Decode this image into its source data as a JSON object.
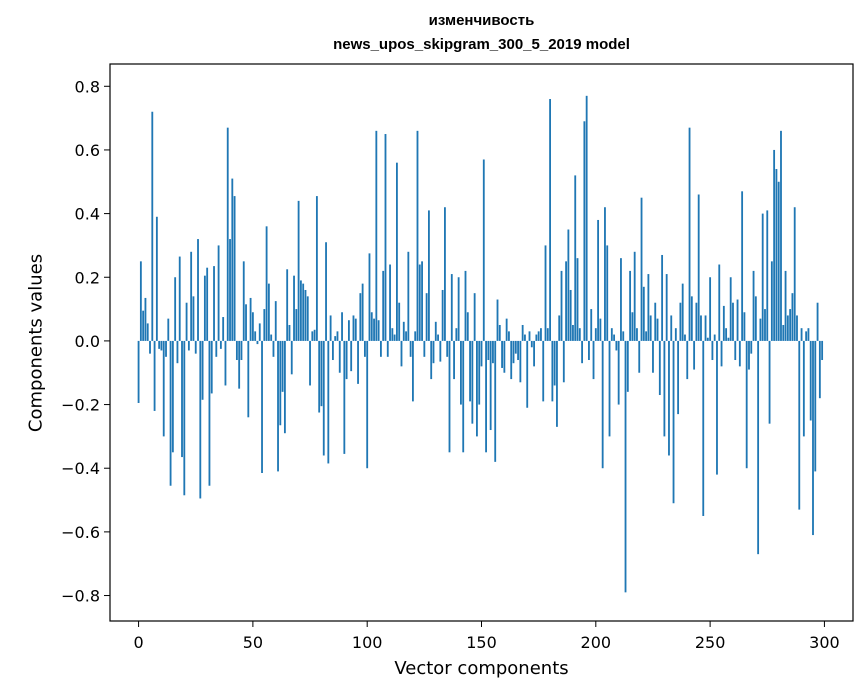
{
  "chart_data": {
    "type": "bar",
    "title": [
      "изменчивость",
      "news_upos_skipgram_300_5_2019 model"
    ],
    "xlabel": "Vector components",
    "ylabel": "Components values",
    "xlim": [
      -12.5,
      312.5
    ],
    "ylim": [
      -0.88,
      0.87
    ],
    "xticks": [
      0,
      50,
      100,
      150,
      200,
      250,
      300
    ],
    "yticks": [
      -0.8,
      -0.6,
      -0.4,
      -0.2,
      0.0,
      0.2,
      0.4,
      0.6,
      0.8
    ],
    "ytick_labels": [
      "−0.8",
      "−0.6",
      "−0.4",
      "−0.2",
      "0.0",
      "0.2",
      "0.4",
      "0.6",
      "0.8"
    ],
    "bar_color": "#1f77b4",
    "grid": false,
    "x": [
      0,
      1,
      2,
      3,
      4,
      5,
      6,
      7,
      8,
      9,
      10,
      11,
      12,
      13,
      14,
      15,
      16,
      17,
      18,
      19,
      20,
      21,
      22,
      23,
      24,
      25,
      26,
      27,
      28,
      29,
      30,
      31,
      32,
      33,
      34,
      35,
      36,
      37,
      38,
      39,
      40,
      41,
      42,
      43,
      44,
      45,
      46,
      47,
      48,
      49,
      50,
      51,
      52,
      53,
      54,
      55,
      56,
      57,
      58,
      59,
      60,
      61,
      62,
      63,
      64,
      65,
      66,
      67,
      68,
      69,
      70,
      71,
      72,
      73,
      74,
      75,
      76,
      77,
      78,
      79,
      80,
      81,
      82,
      83,
      84,
      85,
      86,
      87,
      88,
      89,
      90,
      91,
      92,
      93,
      94,
      95,
      96,
      97,
      98,
      99,
      100,
      101,
      102,
      103,
      104,
      105,
      106,
      107,
      108,
      109,
      110,
      111,
      112,
      113,
      114,
      115,
      116,
      117,
      118,
      119,
      120,
      121,
      122,
      123,
      124,
      125,
      126,
      127,
      128,
      129,
      130,
      131,
      132,
      133,
      134,
      135,
      136,
      137,
      138,
      139,
      140,
      141,
      142,
      143,
      144,
      145,
      146,
      147,
      148,
      149,
      150,
      151,
      152,
      153,
      154,
      155,
      156,
      157,
      158,
      159,
      160,
      161,
      162,
      163,
      164,
      165,
      166,
      167,
      168,
      169,
      170,
      171,
      172,
      173,
      174,
      175,
      176,
      177,
      178,
      179,
      180,
      181,
      182,
      183,
      184,
      185,
      186,
      187,
      188,
      189,
      190,
      191,
      192,
      193,
      194,
      195,
      196,
      197,
      198,
      199,
      200,
      201,
      202,
      203,
      204,
      205,
      206,
      207,
      208,
      209,
      210,
      211,
      212,
      213,
      214,
      215,
      216,
      217,
      218,
      219,
      220,
      221,
      222,
      223,
      224,
      225,
      226,
      227,
      228,
      229,
      230,
      231,
      232,
      233,
      234,
      235,
      236,
      237,
      238,
      239,
      240,
      241,
      242,
      243,
      244,
      245,
      246,
      247,
      248,
      249,
      250,
      251,
      252,
      253,
      254,
      255,
      256,
      257,
      258,
      259,
      260,
      261,
      262,
      263,
      264,
      265,
      266,
      267,
      268,
      269,
      270,
      271,
      272,
      273,
      274,
      275,
      276,
      277,
      278,
      279,
      280,
      281,
      282,
      283,
      284,
      285,
      286,
      287,
      288,
      289,
      290,
      291,
      292,
      293,
      294,
      295,
      296,
      297,
      298,
      299
    ],
    "values": [
      -0.195,
      0.25,
      0.095,
      0.135,
      0.055,
      -0.04,
      0.72,
      -0.22,
      0.39,
      -0.025,
      -0.03,
      -0.3,
      -0.05,
      0.07,
      -0.455,
      -0.35,
      0.2,
      -0.07,
      0.265,
      -0.365,
      -0.485,
      0.12,
      -0.03,
      0.28,
      0.14,
      -0.04,
      0.32,
      -0.495,
      -0.185,
      0.205,
      0.23,
      -0.455,
      -0.165,
      0.235,
      -0.05,
      0.3,
      -0.025,
      0.075,
      -0.14,
      0.67,
      0.32,
      0.51,
      0.455,
      -0.06,
      -0.15,
      -0.06,
      0.25,
      0.115,
      -0.24,
      0.135,
      0.09,
      0.03,
      -0.01,
      0.055,
      -0.415,
      0.1,
      0.36,
      0.18,
      0.02,
      -0.05,
      0.125,
      -0.41,
      -0.265,
      -0.16,
      -0.29,
      0.225,
      0.05,
      -0.105,
      0.205,
      0.1,
      0.44,
      0.19,
      0.18,
      0.16,
      0.14,
      -0.14,
      0.03,
      0.035,
      0.455,
      -0.225,
      -0.205,
      -0.36,
      0.31,
      -0.385,
      0.08,
      -0.06,
      0.015,
      0.03,
      -0.1,
      0.09,
      -0.355,
      -0.12,
      0.065,
      -0.095,
      0.08,
      0.07,
      -0.135,
      0.15,
      0.18,
      -0.05,
      -0.4,
      0.275,
      0.09,
      0.07,
      0.66,
      0.065,
      -0.05,
      0.22,
      0.65,
      -0.05,
      0.24,
      0.04,
      0.02,
      0.56,
      0.12,
      -0.08,
      0.06,
      0.03,
      0.28,
      -0.05,
      -0.19,
      0.03,
      0.66,
      0.24,
      0.25,
      -0.05,
      0.15,
      0.41,
      -0.12,
      -0.07,
      0.06,
      0.02,
      -0.065,
      0.16,
      0.42,
      -0.05,
      -0.35,
      0.21,
      -0.12,
      0.04,
      0.2,
      -0.2,
      -0.35,
      0.22,
      0.09,
      -0.19,
      -0.26,
      0.15,
      -0.3,
      -0.2,
      -0.08,
      0.57,
      -0.35,
      -0.06,
      -0.28,
      -0.07,
      -0.38,
      0.13,
      0.05,
      -0.085,
      -0.1,
      0.07,
      0.03,
      -0.12,
      -0.07,
      -0.04,
      -0.06,
      -0.13,
      0.05,
      0.02,
      -0.21,
      0.03,
      -0.02,
      -0.08,
      0.02,
      0.03,
      0.04,
      -0.19,
      0.3,
      0.04,
      0.76,
      -0.19,
      -0.14,
      -0.27,
      0.08,
      0.22,
      -0.13,
      0.25,
      0.35,
      0.16,
      0.05,
      0.52,
      0.26,
      0.04,
      -0.07,
      0.69,
      0.77,
      -0.06,
      0.1,
      -0.12,
      0.04,
      0.38,
      0.07,
      -0.4,
      0.42,
      0.3,
      -0.3,
      0.04,
      0.02,
      -0.03,
      -0.2,
      0.26,
      0.03,
      -0.79,
      -0.16,
      0.22,
      0.09,
      0.28,
      0.04,
      -0.1,
      0.45,
      0.17,
      0.03,
      0.21,
      0.08,
      -0.1,
      0.12,
      0.07,
      -0.17,
      0.27,
      -0.3,
      0.21,
      -0.36,
      0.08,
      -0.51,
      0.04,
      -0.23,
      0.12,
      0.18,
      0.02,
      -0.12,
      0.67,
      0.14,
      -0.09,
      0.12,
      0.46,
      0.08,
      -0.55,
      0.08,
      0.01,
      0.2,
      -0.06,
      0.02,
      -0.42,
      0.24,
      -0.08,
      0.11,
      0.04,
      0.01,
      0.2,
      0.12,
      -0.06,
      0.13,
      -0.08,
      0.47,
      0.09,
      -0.4,
      -0.09,
      -0.04,
      0.22,
      0.14,
      -0.67,
      0.07,
      0.4,
      0.1,
      0.41,
      -0.26,
      0.25,
      0.6,
      0.54,
      0.5,
      0.66,
      0.05,
      0.22,
      0.08,
      0.1,
      0.15,
      0.42,
      0.08,
      -0.53,
      0.04,
      -0.3,
      0.03,
      0.04,
      -0.25,
      -0.61,
      -0.41,
      0.12,
      -0.18,
      -0.06
    ]
  }
}
